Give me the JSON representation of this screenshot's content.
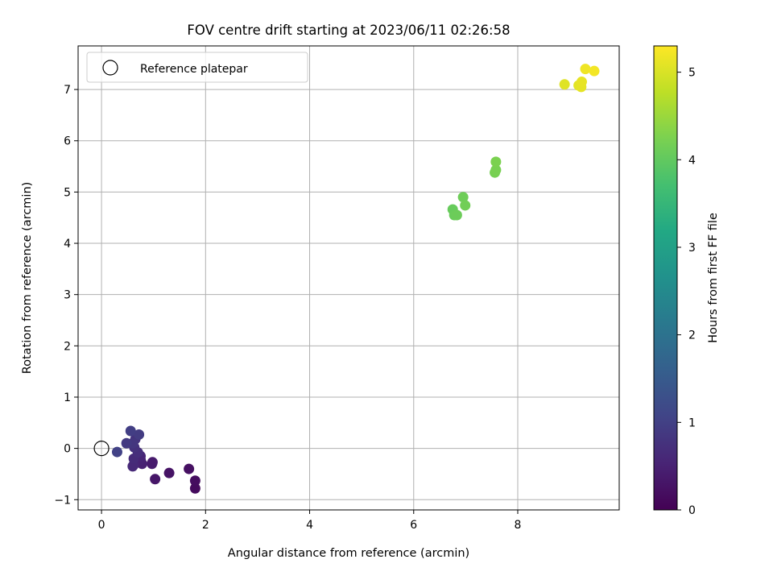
{
  "chart_data": {
    "type": "scatter",
    "title": "FOV centre drift starting at 2023/06/11 02:26:58",
    "xlabel": "Angular distance from reference (arcmin)",
    "ylabel": "Rotation from reference (arcmin)",
    "xlim": [
      -0.45,
      9.95
    ],
    "ylim": [
      -1.2,
      7.85
    ],
    "x_ticks": [
      0,
      2,
      4,
      6,
      8
    ],
    "y_ticks": [
      -1,
      0,
      1,
      2,
      3,
      4,
      5,
      6,
      7
    ],
    "grid": true,
    "legend": {
      "position": "top-left",
      "entries": [
        "Reference platepar"
      ]
    },
    "reference_point": {
      "label": "Reference platepar",
      "x": 0,
      "y": 0
    },
    "colorbar": {
      "label": "Hours from first FF file",
      "colormap": "viridis",
      "range": [
        0,
        5.3
      ],
      "ticks": [
        0,
        1,
        2,
        3,
        4,
        5
      ]
    },
    "series": [
      {
        "name": "",
        "points": [
          {
            "x": 1.8,
            "y": -0.78,
            "c": 0.15
          },
          {
            "x": 1.8,
            "y": -0.63,
            "c": 0.18
          },
          {
            "x": 1.68,
            "y": -0.4,
            "c": 0.22
          },
          {
            "x": 1.3,
            "y": -0.48,
            "c": 0.28
          },
          {
            "x": 1.03,
            "y": -0.6,
            "c": 0.32
          },
          {
            "x": 0.98,
            "y": -0.27,
            "c": 0.38
          },
          {
            "x": 0.97,
            "y": -0.3,
            "c": 0.4
          },
          {
            "x": 0.78,
            "y": -0.3,
            "c": 0.48
          },
          {
            "x": 0.75,
            "y": -0.22,
            "c": 0.52
          },
          {
            "x": 0.75,
            "y": -0.15,
            "c": 0.55
          },
          {
            "x": 0.62,
            "y": -0.32,
            "c": 0.6
          },
          {
            "x": 0.6,
            "y": -0.35,
            "c": 0.62
          },
          {
            "x": 0.62,
            "y": -0.2,
            "c": 0.65
          },
          {
            "x": 0.7,
            "y": -0.08,
            "c": 0.7
          },
          {
            "x": 0.63,
            "y": 0.02,
            "c": 0.74
          },
          {
            "x": 0.65,
            "y": 0.18,
            "c": 0.78
          },
          {
            "x": 0.6,
            "y": 0.1,
            "c": 0.82
          },
          {
            "x": 0.48,
            "y": 0.1,
            "c": 0.88
          },
          {
            "x": 0.72,
            "y": 0.27,
            "c": 0.92
          },
          {
            "x": 0.56,
            "y": 0.34,
            "c": 0.96
          },
          {
            "x": 0.3,
            "y": -0.07,
            "c": 1.02
          },
          {
            "x": 6.75,
            "y": 4.66,
            "c": 4.05
          },
          {
            "x": 6.78,
            "y": 4.55,
            "c": 4.08
          },
          {
            "x": 6.83,
            "y": 4.55,
            "c": 4.1
          },
          {
            "x": 6.95,
            "y": 4.9,
            "c": 4.12
          },
          {
            "x": 6.99,
            "y": 4.74,
            "c": 4.15
          },
          {
            "x": 7.56,
            "y": 5.38,
            "c": 4.2
          },
          {
            "x": 7.58,
            "y": 5.43,
            "c": 4.22
          },
          {
            "x": 7.58,
            "y": 5.59,
            "c": 4.25
          },
          {
            "x": 8.9,
            "y": 7.1,
            "c": 5.05
          },
          {
            "x": 9.17,
            "y": 7.08,
            "c": 5.08
          },
          {
            "x": 9.22,
            "y": 7.05,
            "c": 5.1
          },
          {
            "x": 9.23,
            "y": 7.15,
            "c": 5.12
          },
          {
            "x": 9.3,
            "y": 7.4,
            "c": 5.18
          },
          {
            "x": 9.47,
            "y": 7.36,
            "c": 5.22
          }
        ]
      }
    ]
  }
}
